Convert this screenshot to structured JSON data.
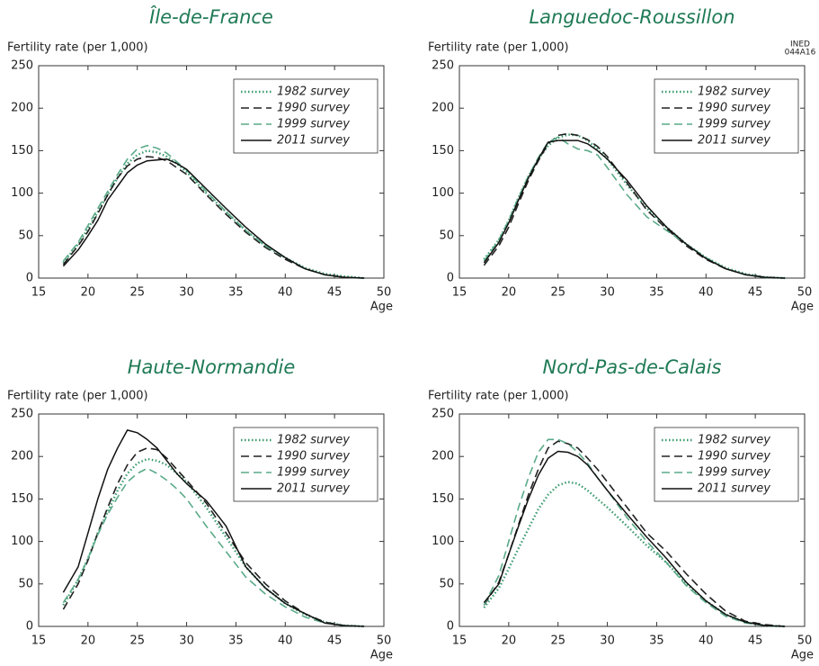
{
  "chart_data": [
    {
      "type": "line",
      "title": "Île-de-France",
      "y_label": "Fertility rate (per 1,000)",
      "x_label": "Age",
      "xlim": [
        15,
        50
      ],
      "xticks": [
        15,
        20,
        25,
        30,
        35,
        40,
        45,
        50
      ],
      "ylim": [
        0,
        250
      ],
      "yticks": [
        0,
        50,
        100,
        150,
        200,
        250
      ],
      "x": [
        17.5,
        19,
        20,
        21,
        22,
        23,
        24,
        25,
        26,
        27,
        28,
        29,
        30,
        32,
        34,
        36,
        38,
        40,
        42,
        44,
        46,
        48
      ],
      "series": [
        {
          "name": "1982 survey",
          "color": "#3a9a6e",
          "style": "dotted",
          "values": [
            18,
            40,
            58,
            78,
            98,
            118,
            135,
            145,
            150,
            148,
            143,
            135,
            125,
            100,
            78,
            56,
            38,
            24,
            12,
            5,
            2,
            0
          ]
        },
        {
          "name": "1990 survey",
          "color": "#222222",
          "style": "dashed",
          "values": [
            16,
            38,
            55,
            76,
            98,
            118,
            132,
            140,
            143,
            142,
            138,
            130,
            122,
            98,
            75,
            54,
            36,
            22,
            11,
            4,
            1,
            0
          ]
        },
        {
          "name": "1999 survey",
          "color": "#5aaa88",
          "style": "dashed",
          "values": [
            20,
            42,
            62,
            82,
            102,
            122,
            140,
            152,
            156,
            153,
            147,
            137,
            127,
            102,
            78,
            56,
            38,
            24,
            11,
            4,
            1,
            0
          ]
        },
        {
          "name": "2011 survey",
          "color": "#111111",
          "style": "solid",
          "values": [
            14,
            33,
            50,
            68,
            92,
            108,
            124,
            133,
            138,
            139,
            140,
            135,
            128,
            105,
            82,
            60,
            40,
            24,
            11,
            4,
            1,
            0
          ]
        }
      ]
    },
    {
      "type": "line",
      "title": "Languedoc-Roussillon",
      "y_label": "Fertility rate (per 1,000)",
      "x_label": "Age",
      "note_lines": [
        "INED",
        "044A16"
      ],
      "xlim": [
        15,
        50
      ],
      "xticks": [
        15,
        20,
        25,
        30,
        35,
        40,
        45,
        50
      ],
      "ylim": [
        0,
        250
      ],
      "yticks": [
        0,
        50,
        100,
        150,
        200,
        250
      ],
      "x": [
        17.5,
        19,
        20,
        21,
        22,
        23,
        24,
        25,
        26,
        27,
        28,
        29,
        30,
        32,
        34,
        36,
        38,
        40,
        42,
        44,
        46,
        48
      ],
      "series": [
        {
          "name": "1982 survey",
          "color": "#3a9a6e",
          "style": "dotted",
          "values": [
            22,
            45,
            68,
            95,
            120,
            140,
            156,
            165,
            169,
            168,
            162,
            152,
            140,
            110,
            82,
            60,
            40,
            24,
            12,
            5,
            1,
            0
          ]
        },
        {
          "name": "1990 survey",
          "color": "#222222",
          "style": "dashed",
          "values": [
            15,
            38,
            60,
            88,
            115,
            138,
            158,
            168,
            170,
            168,
            163,
            155,
            143,
            112,
            80,
            58,
            38,
            22,
            11,
            4,
            1,
            0
          ]
        },
        {
          "name": "1999 survey",
          "color": "#5aaa88",
          "style": "dashed",
          "values": [
            20,
            45,
            68,
            95,
            120,
            142,
            160,
            166,
            158,
            152,
            150,
            145,
            130,
            98,
            72,
            56,
            40,
            24,
            11,
            4,
            1,
            0
          ]
        },
        {
          "name": "2011 survey",
          "color": "#111111",
          "style": "solid",
          "values": [
            18,
            42,
            65,
            92,
            118,
            140,
            160,
            162,
            162,
            162,
            158,
            150,
            140,
            115,
            85,
            60,
            40,
            23,
            11,
            4,
            1,
            0
          ]
        }
      ]
    },
    {
      "type": "line",
      "title": "Haute-Normandie",
      "y_label": "Fertility rate (per 1,000)",
      "x_label": "Age",
      "xlim": [
        15,
        50
      ],
      "xticks": [
        15,
        20,
        25,
        30,
        35,
        40,
        45,
        50
      ],
      "ylim": [
        0,
        250
      ],
      "yticks": [
        0,
        50,
        100,
        150,
        200,
        250
      ],
      "x": [
        17.5,
        19,
        20,
        21,
        22,
        23,
        24,
        25,
        26,
        27,
        28,
        29,
        30,
        32,
        34,
        36,
        38,
        40,
        42,
        44,
        46,
        48
      ],
      "series": [
        {
          "name": "1982 survey",
          "color": "#3a9a6e",
          "style": "dotted",
          "values": [
            25,
            55,
            80,
            110,
            135,
            160,
            180,
            192,
            197,
            195,
            190,
            180,
            170,
            140,
            105,
            70,
            45,
            27,
            14,
            5,
            1,
            0
          ]
        },
        {
          "name": "1990 survey",
          "color": "#222222",
          "style": "dashed",
          "values": [
            20,
            50,
            78,
            110,
            140,
            168,
            190,
            205,
            210,
            208,
            198,
            185,
            172,
            145,
            110,
            75,
            50,
            30,
            15,
            5,
            1,
            0
          ]
        },
        {
          "name": "1999 survey",
          "color": "#5aaa88",
          "style": "dashed",
          "values": [
            28,
            55,
            80,
            108,
            132,
            152,
            170,
            180,
            186,
            180,
            172,
            162,
            150,
            118,
            88,
            58,
            38,
            23,
            11,
            4,
            1,
            0
          ]
        },
        {
          "name": "2011 survey",
          "color": "#111111",
          "style": "solid",
          "values": [
            40,
            70,
            110,
            150,
            185,
            210,
            231,
            228,
            220,
            210,
            195,
            180,
            168,
            148,
            118,
            70,
            45,
            27,
            15,
            4,
            1,
            0
          ]
        }
      ]
    },
    {
      "type": "line",
      "title": "Nord-Pas-de-Calais",
      "y_label": "Fertility rate (per 1,000)",
      "x_label": "Age",
      "xlim": [
        15,
        50
      ],
      "xticks": [
        15,
        20,
        25,
        30,
        35,
        40,
        45,
        50
      ],
      "ylim": [
        0,
        250
      ],
      "yticks": [
        0,
        50,
        100,
        150,
        200,
        250
      ],
      "x": [
        17.5,
        19,
        20,
        21,
        22,
        23,
        24,
        25,
        26,
        27,
        28,
        29,
        30,
        32,
        34,
        36,
        38,
        40,
        42,
        44,
        46,
        48
      ],
      "series": [
        {
          "name": "1982 survey",
          "color": "#3a9a6e",
          "style": "dotted",
          "values": [
            22,
            45,
            68,
            92,
            115,
            138,
            155,
            166,
            170,
            168,
            160,
            150,
            140,
            118,
            95,
            75,
            50,
            30,
            14,
            5,
            1,
            0
          ]
        },
        {
          "name": "1990 survey",
          "color": "#222222",
          "style": "dashed",
          "values": [
            25,
            52,
            85,
            120,
            155,
            185,
            210,
            218,
            215,
            210,
            198,
            185,
            170,
            140,
            110,
            88,
            62,
            38,
            18,
            6,
            2,
            0
          ]
        },
        {
          "name": "1999 survey",
          "color": "#5aaa88",
          "style": "dashed",
          "values": [
            25,
            60,
            100,
            140,
            175,
            205,
            220,
            220,
            215,
            205,
            192,
            175,
            160,
            128,
            100,
            75,
            48,
            28,
            12,
            4,
            1,
            0
          ]
        },
        {
          "name": "2011 survey",
          "color": "#111111",
          "style": "solid",
          "values": [
            28,
            50,
            85,
            118,
            150,
            178,
            198,
            206,
            205,
            200,
            190,
            175,
            160,
            132,
            105,
            80,
            52,
            30,
            14,
            5,
            1,
            0
          ]
        }
      ]
    }
  ]
}
